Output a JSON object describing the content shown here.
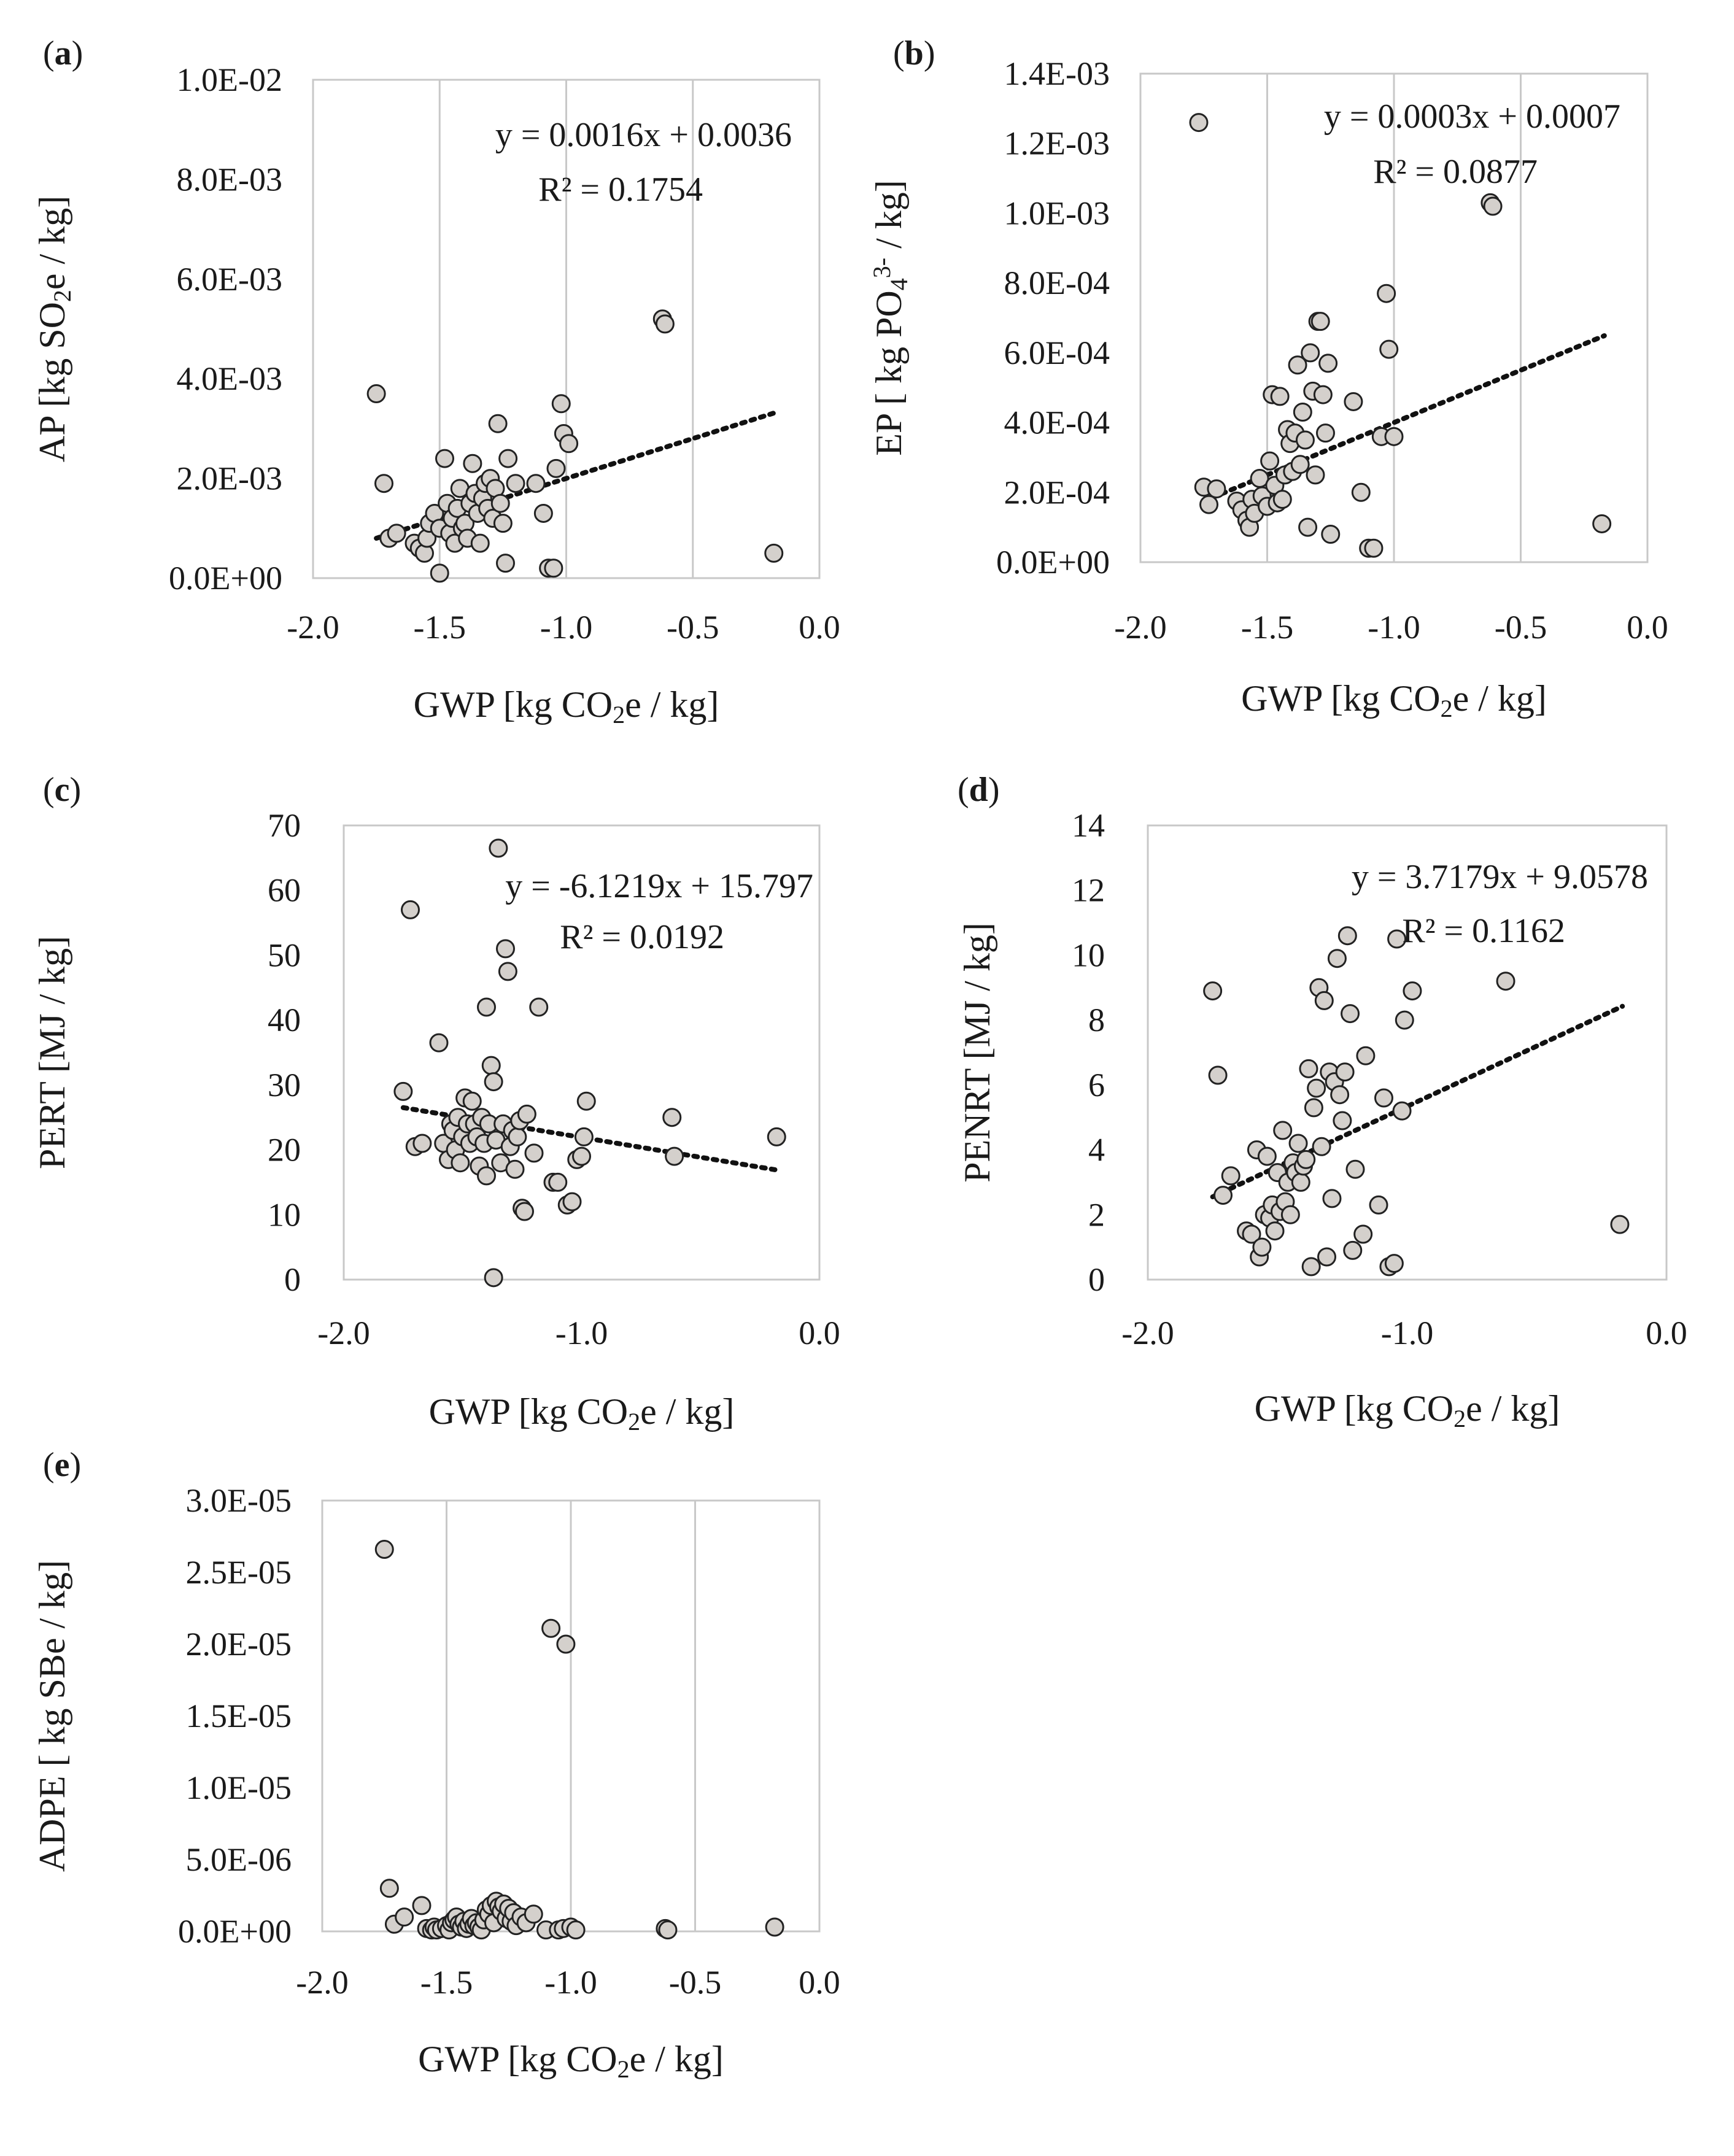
{
  "chart_data": [
    {
      "panel": "(a)",
      "panel_letter": "a",
      "type": "scatter",
      "xlabel": "GWP [kg CO2e / kg]",
      "ylabel": "AP [kg SO2e / kg]",
      "xlim": [
        -2.0,
        0.0
      ],
      "ylim": [
        0,
        0.01
      ],
      "x_ticks": [
        "-2.0",
        "-1.5",
        "-1.0",
        "-0.5",
        "0.0"
      ],
      "y_ticks": [
        "0.0E+00",
        "2.0E-03",
        "4.0E-03",
        "6.0E-03",
        "8.0E-03",
        "1.0E-02"
      ],
      "grid": "vertical",
      "trendline": {
        "slope": 0.0016,
        "intercept": 0.0036,
        "x_range": [
          -1.75,
          -0.17
        ],
        "equation": "y = 0.0016x + 0.0036",
        "r2": "R² = 0.1754"
      },
      "points": [
        [
          -1.75,
          0.0037
        ],
        [
          -1.72,
          0.0019
        ],
        [
          -1.7,
          0.0008
        ],
        [
          -1.67,
          0.0009
        ],
        [
          -1.6,
          0.0007
        ],
        [
          -1.58,
          0.0006
        ],
        [
          -1.56,
          0.0005
        ],
        [
          -1.55,
          0.0008
        ],
        [
          -1.54,
          0.0011
        ],
        [
          -1.52,
          0.0013
        ],
        [
          -1.5,
          0.001
        ],
        [
          -1.5,
          0.0001
        ],
        [
          -1.48,
          0.0024
        ],
        [
          -1.47,
          0.0015
        ],
        [
          -1.46,
          0.0009
        ],
        [
          -1.45,
          0.0012
        ],
        [
          -1.44,
          0.0007
        ],
        [
          -1.43,
          0.0014
        ],
        [
          -1.42,
          0.0018
        ],
        [
          -1.41,
          0.001
        ],
        [
          -1.4,
          0.0011
        ],
        [
          -1.39,
          0.0008
        ],
        [
          -1.38,
          0.0015
        ],
        [
          -1.37,
          0.0023
        ],
        [
          -1.36,
          0.0017
        ],
        [
          -1.35,
          0.0013
        ],
        [
          -1.34,
          0.0007
        ],
        [
          -1.33,
          0.0016
        ],
        [
          -1.32,
          0.0019
        ],
        [
          -1.31,
          0.0014
        ],
        [
          -1.3,
          0.002
        ],
        [
          -1.29,
          0.0012
        ],
        [
          -1.28,
          0.0018
        ],
        [
          -1.27,
          0.0031
        ],
        [
          -1.26,
          0.0015
        ],
        [
          -1.25,
          0.0011
        ],
        [
          -1.24,
          0.0003
        ],
        [
          -1.23,
          0.0024
        ],
        [
          -1.2,
          0.0019
        ],
        [
          -1.12,
          0.0019
        ],
        [
          -1.09,
          0.0013
        ],
        [
          -1.07,
          0.0002
        ],
        [
          -1.05,
          0.0002
        ],
        [
          -1.04,
          0.0022
        ],
        [
          -1.02,
          0.0035
        ],
        [
          -1.01,
          0.0029
        ],
        [
          -0.99,
          0.0027
        ],
        [
          -0.62,
          0.0052
        ],
        [
          -0.61,
          0.0051
        ],
        [
          -0.18,
          0.0005
        ]
      ]
    },
    {
      "panel": "(b)",
      "panel_letter": "b",
      "type": "scatter",
      "xlabel": "GWP [kg CO2e / kg]",
      "ylabel": "EP [ kg PO43- / kg]",
      "xlim": [
        -2.0,
        0.0
      ],
      "ylim": [
        0,
        0.0014
      ],
      "x_ticks": [
        "-2.0",
        "-1.5",
        "-1.0",
        "-0.5",
        "0.0"
      ],
      "y_ticks": [
        "0.0E+00",
        "2.0E-04",
        "4.0E-04",
        "6.0E-04",
        "8.0E-04",
        "1.0E-03",
        "1.2E-03",
        "1.4E-03"
      ],
      "grid": "vertical",
      "trendline": {
        "slope": 0.0003,
        "intercept": 0.0007,
        "x_range": [
          -1.75,
          -0.17
        ],
        "equation": "y = 0.0003x + 0.0007",
        "r2": "R² = 0.0877"
      },
      "points": [
        [
          -1.75,
          0.000215
        ],
        [
          -1.73,
          0.000165
        ],
        [
          -1.7,
          0.00021
        ],
        [
          -1.62,
          0.000175
        ],
        [
          -1.6,
          0.00015
        ],
        [
          -1.58,
          0.00012
        ],
        [
          -1.57,
          0.0001
        ],
        [
          -1.56,
          0.00018
        ],
        [
          -1.55,
          0.00014
        ],
        [
          -1.53,
          0.00024
        ],
        [
          -1.52,
          0.00019
        ],
        [
          -1.5,
          0.00016
        ],
        [
          -1.49,
          0.00029
        ],
        [
          -1.48,
          0.00048
        ],
        [
          -1.47,
          0.00022
        ],
        [
          -1.46,
          0.00017
        ],
        [
          -1.45,
          0.000475
        ],
        [
          -1.44,
          0.00018
        ],
        [
          -1.43,
          0.00025
        ],
        [
          -1.42,
          0.00038
        ],
        [
          -1.41,
          0.00034
        ],
        [
          -1.4,
          0.00026
        ],
        [
          -1.39,
          0.00037
        ],
        [
          -1.38,
          0.000565
        ],
        [
          -1.37,
          0.00028
        ],
        [
          -1.36,
          0.00043
        ],
        [
          -1.35,
          0.00035
        ],
        [
          -1.34,
          0.0001
        ],
        [
          -1.33,
          0.0006
        ],
        [
          -1.32,
          0.00049
        ],
        [
          -1.31,
          0.00025
        ],
        [
          -1.3,
          0.00069
        ],
        [
          -1.29,
          0.00069
        ],
        [
          -1.28,
          0.00048
        ],
        [
          -1.27,
          0.00037
        ],
        [
          -1.26,
          0.00057
        ],
        [
          -1.25,
          8e-05
        ],
        [
          -1.16,
          0.00046
        ],
        [
          -1.13,
          0.0002
        ],
        [
          -1.1,
          4e-05
        ],
        [
          -1.08,
          4e-05
        ],
        [
          -1.05,
          0.00036
        ],
        [
          -1.03,
          0.00077
        ],
        [
          -1.02,
          0.00061
        ],
        [
          -1.0,
          0.00036
        ],
        [
          -0.62,
          0.00103
        ],
        [
          -0.61,
          0.00102
        ],
        [
          -1.77,
          0.00126
        ],
        [
          -0.18,
          0.00011
        ]
      ]
    },
    {
      "panel": "(c)",
      "panel_letter": "c",
      "type": "scatter",
      "xlabel": "GWP [kg CO2e / kg]",
      "ylabel": "PERT [MJ / kg]",
      "xlim": [
        -2.0,
        0.0
      ],
      "ylim": [
        0,
        70
      ],
      "x_ticks": [
        "-2.0",
        "-1.0",
        "0.0"
      ],
      "y_ticks": [
        "0",
        "10",
        "20",
        "30",
        "40",
        "50",
        "60",
        "70"
      ],
      "grid": "none",
      "trendline": {
        "slope": -6.1219,
        "intercept": 15.797,
        "x_range": [
          -1.75,
          -0.17
        ],
        "equation": "y = -6.1219x + 15.797",
        "r2": "R² = 0.0192"
      },
      "points": [
        [
          -1.75,
          29
        ],
        [
          -1.72,
          57
        ],
        [
          -1.7,
          20.5
        ],
        [
          -1.67,
          21
        ],
        [
          -1.6,
          36.5
        ],
        [
          -1.58,
          21
        ],
        [
          -1.56,
          18.5
        ],
        [
          -1.55,
          24
        ],
        [
          -1.54,
          23
        ],
        [
          -1.53,
          20
        ],
        [
          -1.52,
          25
        ],
        [
          -1.51,
          18
        ],
        [
          -1.5,
          22
        ],
        [
          -1.49,
          28
        ],
        [
          -1.48,
          24
        ],
        [
          -1.47,
          21
        ],
        [
          -1.46,
          27.5
        ],
        [
          -1.45,
          24
        ],
        [
          -1.44,
          22
        ],
        [
          -1.43,
          17.5
        ],
        [
          -1.42,
          25
        ],
        [
          -1.41,
          21
        ],
        [
          -1.4,
          42
        ],
        [
          -1.4,
          16
        ],
        [
          -1.39,
          24
        ],
        [
          -1.38,
          33
        ],
        [
          -1.37,
          30.5
        ],
        [
          -1.37,
          0.3
        ],
        [
          -1.36,
          21.5
        ],
        [
          -1.35,
          66.5
        ],
        [
          -1.34,
          18
        ],
        [
          -1.33,
          24
        ],
        [
          -1.32,
          51
        ],
        [
          -1.31,
          47.5
        ],
        [
          -1.3,
          20.5
        ],
        [
          -1.29,
          23
        ],
        [
          -1.28,
          17
        ],
        [
          -1.27,
          22
        ],
        [
          -1.26,
          24.5
        ],
        [
          -1.25,
          11
        ],
        [
          -1.24,
          10.5
        ],
        [
          -1.23,
          25.5
        ],
        [
          -1.2,
          19.5
        ],
        [
          -1.18,
          42
        ],
        [
          -1.12,
          15
        ],
        [
          -1.1,
          15
        ],
        [
          -1.06,
          11.5
        ],
        [
          -1.04,
          12
        ],
        [
          -1.02,
          18.5
        ],
        [
          -1.0,
          19
        ],
        [
          -0.99,
          22
        ],
        [
          -0.98,
          27.5
        ],
        [
          -0.62,
          25
        ],
        [
          -0.61,
          19
        ],
        [
          -0.18,
          22
        ]
      ]
    },
    {
      "panel": "(d)",
      "panel_letter": "d",
      "type": "scatter",
      "xlabel": "GWP [kg CO2e / kg]",
      "ylabel": "PENRT [MJ / kg]",
      "xlim": [
        -2.0,
        0.0
      ],
      "ylim": [
        0,
        14
      ],
      "x_ticks": [
        "-2.0",
        "-1.0",
        "0.0"
      ],
      "y_ticks": [
        "0",
        "2",
        "4",
        "6",
        "8",
        "10",
        "12",
        "14"
      ],
      "grid": "none",
      "trendline": {
        "slope": 3.7179,
        "intercept": 9.0578,
        "x_range": [
          -1.75,
          -0.17
        ],
        "equation": "y = 3.7179x + 9.0578",
        "r2": "R² = 0.1162"
      },
      "points": [
        [
          -1.75,
          8.9
        ],
        [
          -1.73,
          6.3
        ],
        [
          -1.71,
          2.6
        ],
        [
          -1.68,
          3.2
        ],
        [
          -1.62,
          1.5
        ],
        [
          -1.6,
          1.4
        ],
        [
          -1.58,
          4.0
        ],
        [
          -1.57,
          0.7
        ],
        [
          -1.56,
          1.0
        ],
        [
          -1.55,
          2.0
        ],
        [
          -1.54,
          3.8
        ],
        [
          -1.53,
          1.9
        ],
        [
          -1.52,
          2.3
        ],
        [
          -1.51,
          1.5
        ],
        [
          -1.5,
          3.3
        ],
        [
          -1.49,
          2.1
        ],
        [
          -1.48,
          4.6
        ],
        [
          -1.47,
          2.4
        ],
        [
          -1.46,
          3.0
        ],
        [
          -1.45,
          2.0
        ],
        [
          -1.44,
          3.6
        ],
        [
          -1.43,
          3.3
        ],
        [
          -1.42,
          4.2
        ],
        [
          -1.41,
          3.0
        ],
        [
          -1.4,
          3.5
        ],
        [
          -1.39,
          3.7
        ],
        [
          -1.38,
          6.5
        ],
        [
          -1.37,
          0.4
        ],
        [
          -1.36,
          5.3
        ],
        [
          -1.35,
          5.9
        ],
        [
          -1.34,
          9.0
        ],
        [
          -1.33,
          4.1
        ],
        [
          -1.32,
          8.6
        ],
        [
          -1.31,
          0.7
        ],
        [
          -1.3,
          6.4
        ],
        [
          -1.29,
          2.5
        ],
        [
          -1.28,
          6.1
        ],
        [
          -1.27,
          9.9
        ],
        [
          -1.26,
          5.7
        ],
        [
          -1.25,
          4.9
        ],
        [
          -1.24,
          6.4
        ],
        [
          -1.23,
          10.6
        ],
        [
          -1.22,
          8.2
        ],
        [
          -1.21,
          0.9
        ],
        [
          -1.2,
          3.4
        ],
        [
          -1.17,
          1.4
        ],
        [
          -1.16,
          6.9
        ],
        [
          -1.11,
          2.3
        ],
        [
          -1.09,
          5.6
        ],
        [
          -1.07,
          0.4
        ],
        [
          -1.05,
          0.5
        ],
        [
          -1.04,
          10.5
        ],
        [
          -1.02,
          5.2
        ],
        [
          -1.01,
          8.0
        ],
        [
          -0.98,
          8.9
        ],
        [
          -0.62,
          9.2
        ],
        [
          -0.18,
          1.7
        ]
      ]
    },
    {
      "panel": "(e)",
      "panel_letter": "e",
      "type": "scatter",
      "xlabel": "GWP [kg CO2e / kg]",
      "ylabel": "ADPE [ kg SBe / kg]",
      "xlim": [
        -2.0,
        0.0
      ],
      "ylim": [
        0,
        3e-05
      ],
      "x_ticks": [
        "-2.0",
        "-1.5",
        "-1.0",
        "-0.5",
        "0.0"
      ],
      "y_ticks": [
        "0.0E+00",
        "5.0E-06",
        "1.0E-05",
        "1.5E-05",
        "2.0E-05",
        "2.5E-05",
        "3.0E-05"
      ],
      "grid": "vertical",
      "points": [
        [
          -1.75,
          2.66e-05
        ],
        [
          -1.73,
          3e-06
        ],
        [
          -1.71,
          5e-07
        ],
        [
          -1.67,
          1e-06
        ],
        [
          -1.6,
          1.8e-06
        ],
        [
          -1.58,
          2e-07
        ],
        [
          -1.56,
          1e-07
        ],
        [
          -1.55,
          3e-07
        ],
        [
          -1.54,
          1e-07
        ],
        [
          -1.52,
          2e-07
        ],
        [
          -1.5,
          4e-07
        ],
        [
          -1.49,
          1e-07
        ],
        [
          -1.48,
          6e-07
        ],
        [
          -1.47,
          8e-07
        ],
        [
          -1.46,
          1e-06
        ],
        [
          -1.45,
          5e-07
        ],
        [
          -1.44,
          3e-07
        ],
        [
          -1.43,
          7e-07
        ],
        [
          -1.42,
          2e-07
        ],
        [
          -1.41,
          5e-07
        ],
        [
          -1.4,
          9e-07
        ],
        [
          -1.39,
          4e-07
        ],
        [
          -1.38,
          6e-07
        ],
        [
          -1.37,
          3e-07
        ],
        [
          -1.36,
          1e-07
        ],
        [
          -1.35,
          8e-07
        ],
        [
          -1.34,
          1.5e-06
        ],
        [
          -1.33,
          1.2e-06
        ],
        [
          -1.32,
          1.8e-06
        ],
        [
          -1.31,
          6e-07
        ],
        [
          -1.3,
          2.1e-06
        ],
        [
          -1.29,
          1.7e-06
        ],
        [
          -1.28,
          1.4e-06
        ],
        [
          -1.27,
          1.9e-06
        ],
        [
          -1.26,
          9e-07
        ],
        [
          -1.25,
          1.6e-06
        ],
        [
          -1.24,
          7e-07
        ],
        [
          -1.23,
          1.3e-06
        ],
        [
          -1.22,
          4e-07
        ],
        [
          -1.2,
          1e-06
        ],
        [
          -1.18,
          6e-07
        ],
        [
          -1.15,
          1.2e-06
        ],
        [
          -1.1,
          1e-07
        ],
        [
          -1.08,
          2.11e-05
        ],
        [
          -1.05,
          1e-07
        ],
        [
          -1.03,
          2e-07
        ],
        [
          -1.02,
          2e-05
        ],
        [
          -1.0,
          3e-07
        ],
        [
          -0.98,
          1e-07
        ],
        [
          -0.62,
          2e-07
        ],
        [
          -0.61,
          1e-07
        ],
        [
          -0.18,
          3e-07
        ]
      ]
    }
  ]
}
